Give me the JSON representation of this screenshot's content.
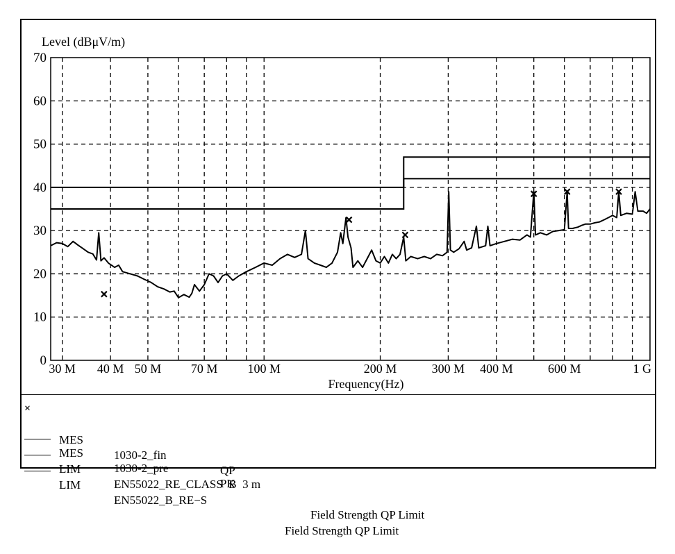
{
  "chart_data": {
    "type": "line",
    "ylabel": "Level (dBμV/m)",
    "xlabel": "Frequency(Hz)",
    "x_scale": "log",
    "xlim": [
      28,
      1000
    ],
    "ylim": [
      0,
      70
    ],
    "y_ticks": [
      0,
      10,
      20,
      30,
      40,
      50,
      60,
      70
    ],
    "x_tick_labels": [
      {
        "value": 30,
        "label": "30 M"
      },
      {
        "value": 40,
        "label": "40 M"
      },
      {
        "value": 50,
        "label": "50 M"
      },
      {
        "value": 70,
        "label": "70 M"
      },
      {
        "value": 100,
        "label": "100 M"
      },
      {
        "value": 200,
        "label": "200 M"
      },
      {
        "value": 300,
        "label": "300 M"
      },
      {
        "value": 400,
        "label": "400 M"
      },
      {
        "value": 600,
        "label": "600 M"
      },
      {
        "value": 1000,
        "label": "1 G"
      }
    ],
    "x_gridlines": [
      30,
      40,
      50,
      60,
      70,
      80,
      90,
      100,
      200,
      300,
      400,
      500,
      600,
      700,
      800,
      900
    ],
    "y_gridlines": [
      10,
      20,
      30,
      40,
      50,
      60
    ],
    "grid": "dashed",
    "limit_lines": [
      {
        "name": "EN55022_RE_CLASS B 3 m",
        "segments": [
          {
            "x": [
              28,
              230
            ],
            "y": 40
          },
          {
            "x": [
              230,
              1000
            ],
            "y": 47
          }
        ]
      },
      {
        "name": "EN55022_B_RE-S",
        "segments": [
          {
            "x": [
              28,
              230
            ],
            "y": 35
          },
          {
            "x": [
              230,
              1000
            ],
            "y": 42
          }
        ]
      }
    ],
    "series": [
      {
        "name": "1030-2_pre",
        "detector": "PK",
        "points": [
          [
            28,
            26.5
          ],
          [
            29,
            27.2
          ],
          [
            30,
            27
          ],
          [
            31,
            26.3
          ],
          [
            32,
            27.5
          ],
          [
            33,
            26.6
          ],
          [
            34,
            25.8
          ],
          [
            35,
            25
          ],
          [
            36,
            24.6
          ],
          [
            36.8,
            23.2
          ],
          [
            37.3,
            29.5
          ],
          [
            37.8,
            23
          ],
          [
            38.5,
            23.7
          ],
          [
            39.5,
            22.5
          ],
          [
            41,
            21.5
          ],
          [
            42,
            22
          ],
          [
            43,
            20.5
          ],
          [
            45,
            20
          ],
          [
            47,
            19.5
          ],
          [
            49,
            18.7
          ],
          [
            51,
            18
          ],
          [
            53,
            17
          ],
          [
            55,
            16.5
          ],
          [
            57,
            15.8
          ],
          [
            58.5,
            16
          ],
          [
            60,
            14.5
          ],
          [
            62,
            15.2
          ],
          [
            64,
            14.6
          ],
          [
            65,
            15.5
          ],
          [
            66,
            17.5
          ],
          [
            68,
            16
          ],
          [
            70,
            17.5
          ],
          [
            72,
            20
          ],
          [
            74,
            19.5
          ],
          [
            76,
            18
          ],
          [
            78,
            19.5
          ],
          [
            80,
            20
          ],
          [
            83,
            18.5
          ],
          [
            86,
            19.5
          ],
          [
            90,
            20.5
          ],
          [
            95,
            21.5
          ],
          [
            100,
            22.5
          ],
          [
            105,
            22
          ],
          [
            110,
            23.5
          ],
          [
            115,
            24.5
          ],
          [
            120,
            23.8
          ],
          [
            125,
            24.5
          ],
          [
            128,
            30
          ],
          [
            130,
            23.5
          ],
          [
            135,
            22.5
          ],
          [
            140,
            22
          ],
          [
            145,
            21.5
          ],
          [
            150,
            22.5
          ],
          [
            155,
            25
          ],
          [
            158,
            29.5
          ],
          [
            160,
            27
          ],
          [
            163,
            33
          ],
          [
            165,
            28.5
          ],
          [
            168,
            26
          ],
          [
            170,
            21.5
          ],
          [
            175,
            23
          ],
          [
            180,
            21.5
          ],
          [
            185,
            23.5
          ],
          [
            190,
            25.5
          ],
          [
            195,
            23
          ],
          [
            200,
            22.5
          ],
          [
            205,
            24
          ],
          [
            210,
            22.5
          ],
          [
            215,
            24.5
          ],
          [
            220,
            23.5
          ],
          [
            225,
            24.5
          ],
          [
            230,
            28.5
          ],
          [
            233,
            23
          ],
          [
            240,
            24
          ],
          [
            250,
            23.5
          ],
          [
            260,
            24
          ],
          [
            270,
            23.5
          ],
          [
            280,
            24.5
          ],
          [
            290,
            24.2
          ],
          [
            298,
            25
          ],
          [
            301,
            39
          ],
          [
            304,
            25.5
          ],
          [
            310,
            25
          ],
          [
            320,
            25.8
          ],
          [
            330,
            27.5
          ],
          [
            335,
            25.5
          ],
          [
            345,
            26
          ],
          [
            355,
            31
          ],
          [
            360,
            26
          ],
          [
            375,
            26.5
          ],
          [
            380,
            31
          ],
          [
            385,
            26.5
          ],
          [
            400,
            27
          ],
          [
            420,
            27.5
          ],
          [
            440,
            28
          ],
          [
            460,
            27.8
          ],
          [
            480,
            29
          ],
          [
            490,
            28.5
          ],
          [
            500,
            39
          ],
          [
            505,
            29
          ],
          [
            520,
            29.5
          ],
          [
            540,
            29
          ],
          [
            560,
            29.8
          ],
          [
            580,
            30
          ],
          [
            600,
            30.2
          ],
          [
            610,
            39
          ],
          [
            615,
            30.5
          ],
          [
            630,
            30.5
          ],
          [
            650,
            30.8
          ],
          [
            665,
            31.2
          ],
          [
            680,
            31.5
          ],
          [
            700,
            31.5
          ],
          [
            720,
            31.8
          ],
          [
            740,
            32
          ],
          [
            760,
            32.5
          ],
          [
            780,
            33
          ],
          [
            800,
            33.5
          ],
          [
            820,
            33
          ],
          [
            830,
            39
          ],
          [
            840,
            33.5
          ],
          [
            870,
            34
          ],
          [
            900,
            33.8
          ],
          [
            915,
            39
          ],
          [
            930,
            34.5
          ],
          [
            960,
            34.5
          ],
          [
            980,
            34
          ],
          [
            1000,
            35
          ]
        ]
      },
      {
        "name": "1030-2_fin",
        "detector": "QP",
        "marker": "x",
        "points": [
          [
            38.5,
            15.3
          ],
          [
            166,
            32.5
          ],
          [
            232,
            29
          ],
          [
            500,
            38.5
          ],
          [
            610,
            39
          ],
          [
            830,
            39
          ]
        ]
      }
    ]
  },
  "legend": [
    {
      "symbol": "cross",
      "type": "MES",
      "name": "1030-2_fin",
      "detector": "QP",
      "description": ""
    },
    {
      "symbol": "line",
      "type": "MES",
      "name": "1030-2_pre",
      "detector": "PK",
      "description": ""
    },
    {
      "symbol": "line",
      "type": "LIM",
      "name": "EN55022_RE_CLASS  B  3 m",
      "detector": "",
      "description": "Field Strength QP Limit"
    },
    {
      "symbol": "line",
      "type": "LIM",
      "name": "EN55022_B_RE−S",
      "detector": "",
      "description": "Field Strength QP Limit"
    }
  ]
}
